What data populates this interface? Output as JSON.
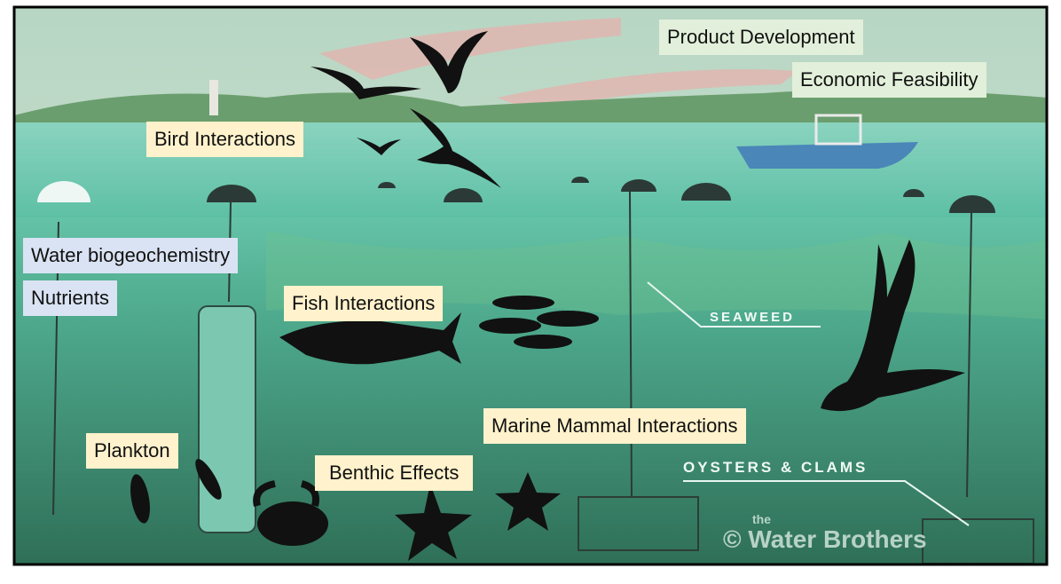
{
  "labels": {
    "product_development": "Product Development",
    "economic_feasibility": "Economic Feasibility",
    "bird_interactions": "Bird Interactions",
    "water_biogeochemistry": "Water biogeochemistry",
    "nutrients": "Nutrients",
    "fish_interactions": "Fish Interactions",
    "marine_mammal_interactions": "Marine Mammal Interactions",
    "plankton": "Plankton",
    "benthic_effects": "Benthic Effects"
  },
  "illustration": {
    "seaweed": "SEAWEED",
    "oysters_clams": "OYSTERS & CLAMS",
    "watermark_small": "the",
    "watermark": "© Water Brothers"
  }
}
